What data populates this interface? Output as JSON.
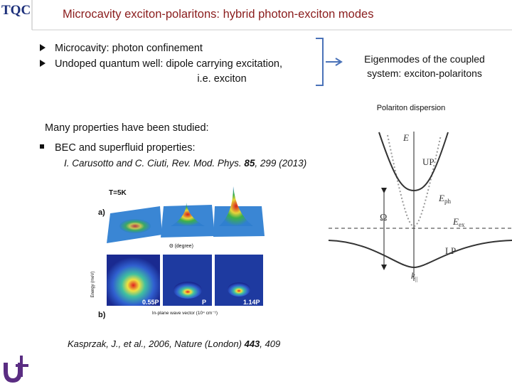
{
  "logo": "TQC",
  "title": "Microcavity exciton-polaritons: hybrid photon-exciton modes",
  "bullets": [
    {
      "lines": [
        "Microcavity: photon confinement"
      ]
    },
    {
      "lines": [
        "Undoped quantum well: dipole carrying excitation,",
        "i.e. exciton"
      ]
    }
  ],
  "eigenmodes": {
    "lines": [
      "Eigenmodes of the coupled",
      "system: exciton-polaritons"
    ]
  },
  "dispersion": {
    "title": "Polariton dispersion",
    "energy": "E",
    "upper": "UP",
    "photon": {
      "main": "E",
      "sub": "ph"
    },
    "rabi": "Ω",
    "exciton": {
      "main": "E",
      "sub": "ex"
    },
    "lower": "LP",
    "momentum": {
      "main": "k",
      "sub": "||"
    }
  },
  "properties": {
    "heading": "Many properties have been studied:",
    "item": "BEC and superfluid properties:",
    "reference": {
      "before": "I. Carusotto and C. Ciuti, Rev. Mod. Phys. ",
      "volume": "85",
      "after": ", 299 (2013)"
    }
  },
  "figure": {
    "temperature": "T=5K",
    "panel_a": "a)",
    "panel_b": "b)",
    "axis_top": "Θ (degree)",
    "axis_left": "Energy (meV)",
    "axis_bottom": "In-plane wave vector (10⁴ cm⁻¹)",
    "powers": [
      "0.55P",
      "P",
      "1.14P"
    ]
  },
  "citation": {
    "before": "Kasprzak, J., et al., 2006, Nature (London) ",
    "volume": "443",
    "after": ", 409"
  }
}
